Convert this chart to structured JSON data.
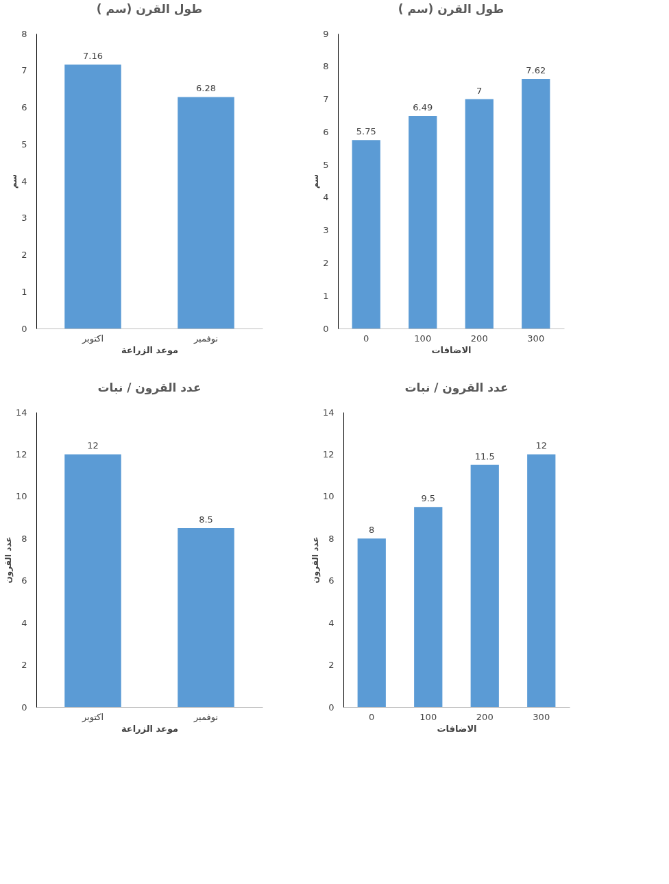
{
  "chart_data": [
    {
      "type": "bar",
      "title": "طول القرن (سم )",
      "xlabel": "موعد الزراعة",
      "ylabel": "سم",
      "categories": [
        "اكتوبر",
        "نوفمبر"
      ],
      "values": [
        7.16,
        6.28
      ],
      "color": "#5b9bd5",
      "ylim": [
        0,
        8
      ],
      "yticks": [
        0,
        1,
        2,
        3,
        4,
        5,
        6,
        7,
        8
      ],
      "data_labels": true,
      "grid": false
    },
    {
      "type": "bar",
      "title": "طول القرن (سم )",
      "xlabel": "الاضافات",
      "ylabel": "سم",
      "categories": [
        "0",
        "100",
        "200",
        "300"
      ],
      "values": [
        5.75,
        6.49,
        7,
        7.62
      ],
      "color": "#5b9bd5",
      "ylim": [
        0,
        9
      ],
      "yticks": [
        0,
        1,
        2,
        3,
        4,
        5,
        6,
        7,
        8,
        9
      ],
      "data_labels": true,
      "grid": false
    },
    {
      "type": "bar",
      "title": "عدد القرون / نبات",
      "xlabel": "موعد الزراعة",
      "ylabel": "عدد القرون",
      "categories": [
        "اكتوبر",
        "نوفمبر"
      ],
      "values": [
        12,
        8.5
      ],
      "color": "#5b9bd5",
      "ylim": [
        0,
        14
      ],
      "yticks": [
        0,
        2,
        4,
        6,
        8,
        10,
        12,
        14
      ],
      "data_labels": true,
      "grid": false
    },
    {
      "type": "bar",
      "title": "عدد القرون / نبات",
      "xlabel": "الاضافات",
      "ylabel": "عدد القرون",
      "categories": [
        "0",
        "100",
        "200",
        "300"
      ],
      "values": [
        8,
        9.5,
        11.5,
        12
      ],
      "color": "#5b9bd5",
      "ylim": [
        0,
        14
      ],
      "yticks": [
        0,
        2,
        4,
        6,
        8,
        10,
        12,
        14
      ],
      "data_labels": true,
      "grid": false
    }
  ]
}
